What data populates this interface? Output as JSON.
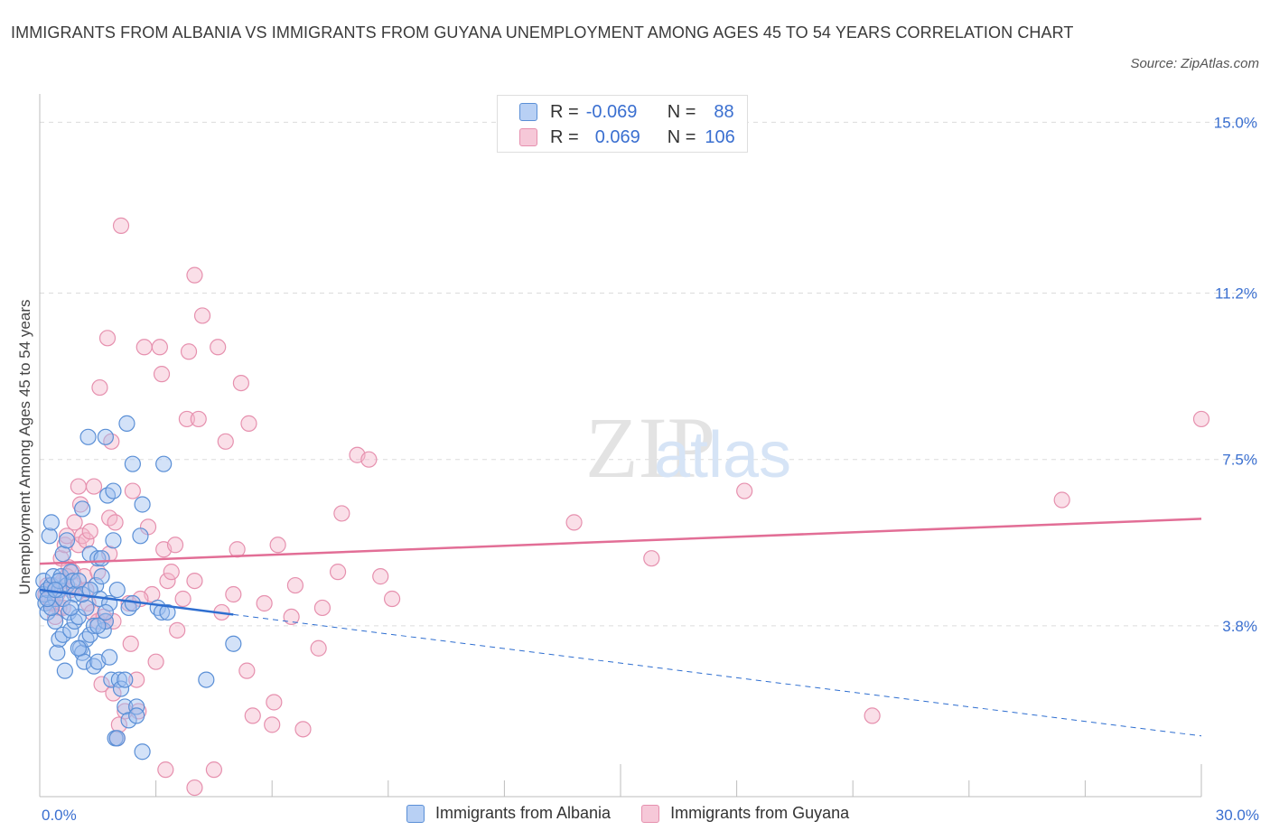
{
  "header": {
    "title": "IMMIGRANTS FROM ALBANIA VS IMMIGRANTS FROM GUYANA UNEMPLOYMENT AMONG AGES 45 TO 54 YEARS CORRELATION CHART",
    "source": "Source: ZipAtlas.com"
  },
  "colors": {
    "albania_fill": "#9dbff0",
    "albania_stroke": "#5a8fd6",
    "albania_line": "#2e6ed0",
    "guyana_fill": "#f3b8cc",
    "guyana_stroke": "#e690ae",
    "guyana_line": "#e26e96",
    "tick_text": "#3a6fd0"
  },
  "legend_top": {
    "r_label": "R =",
    "n_label": "N =",
    "rows": [
      {
        "r": "-0.069",
        "n": "88"
      },
      {
        "r": "0.069",
        "n": "106"
      }
    ]
  },
  "watermark": {
    "zip": "ZIP",
    "atlas": "atlas"
  },
  "chart_data": {
    "type": "scatter",
    "title": "IMMIGRANTS FROM ALBANIA VS IMMIGRANTS FROM GUYANA UNEMPLOYMENT AMONG AGES 45 TO 54 YEARS CORRELATION CHART",
    "xlabel": "",
    "ylabel": "Unemployment Among Ages 45 to 54 years",
    "xlim": [
      0,
      30
    ],
    "ylim": [
      0,
      15.35
    ],
    "x_tick_labels": [
      "0.0%",
      "30.0%"
    ],
    "x_ticks": [
      0,
      30
    ],
    "y_tick_labels": [
      "3.8%",
      "7.5%",
      "11.2%",
      "15.0%"
    ],
    "y_ticks": [
      3.8,
      7.5,
      11.2,
      15.0
    ],
    "grid": "horizontal dashed",
    "legend_position": "bottom",
    "series": [
      {
        "name": "Immigrants from Albania",
        "R": -0.069,
        "N": 88,
        "trend": {
          "x": [
            0,
            5
          ],
          "y": [
            4.6,
            4.05
          ],
          "extended_to": [
            30,
            1.35
          ]
        },
        "points": [
          [
            0.1,
            4.8
          ],
          [
            0.1,
            4.5
          ],
          [
            0.15,
            4.3
          ],
          [
            0.2,
            4.6
          ],
          [
            0.2,
            4.1
          ],
          [
            0.25,
            5.8
          ],
          [
            0.3,
            6.1
          ],
          [
            0.3,
            4.7
          ],
          [
            0.35,
            4.9
          ],
          [
            0.4,
            3.9
          ],
          [
            0.4,
            4.4
          ],
          [
            0.45,
            3.2
          ],
          [
            0.5,
            4.6
          ],
          [
            0.5,
            3.5
          ],
          [
            0.55,
            4.9
          ],
          [
            0.6,
            5.4
          ],
          [
            0.6,
            3.6
          ],
          [
            0.65,
            2.8
          ],
          [
            0.7,
            4.7
          ],
          [
            0.7,
            5.7
          ],
          [
            0.75,
            4.1
          ],
          [
            0.8,
            3.7
          ],
          [
            0.8,
            5.0
          ],
          [
            0.85,
            4.8
          ],
          [
            0.9,
            3.9
          ],
          [
            0.9,
            4.5
          ],
          [
            1.0,
            4.0
          ],
          [
            1.0,
            4.8
          ],
          [
            1.05,
            3.3
          ],
          [
            1.1,
            3.2
          ],
          [
            1.1,
            6.4
          ],
          [
            1.15,
            3.0
          ],
          [
            1.2,
            4.2
          ],
          [
            1.2,
            3.5
          ],
          [
            1.25,
            8.0
          ],
          [
            1.3,
            3.6
          ],
          [
            1.3,
            5.4
          ],
          [
            1.4,
            2.9
          ],
          [
            1.4,
            3.8
          ],
          [
            1.45,
            4.7
          ],
          [
            1.5,
            5.3
          ],
          [
            1.5,
            3.0
          ],
          [
            1.55,
            4.4
          ],
          [
            1.6,
            4.9
          ],
          [
            1.6,
            5.3
          ],
          [
            1.65,
            3.7
          ],
          [
            1.7,
            8.0
          ],
          [
            1.7,
            3.9
          ],
          [
            1.75,
            6.7
          ],
          [
            1.8,
            4.3
          ],
          [
            1.8,
            3.1
          ],
          [
            1.85,
            2.6
          ],
          [
            1.9,
            5.7
          ],
          [
            1.9,
            6.8
          ],
          [
            1.95,
            1.3
          ],
          [
            2.0,
            4.6
          ],
          [
            2.0,
            1.3
          ],
          [
            2.05,
            2.6
          ],
          [
            2.1,
            2.4
          ],
          [
            2.2,
            2.0
          ],
          [
            2.2,
            2.6
          ],
          [
            2.25,
            8.3
          ],
          [
            2.3,
            4.2
          ],
          [
            2.3,
            1.7
          ],
          [
            2.4,
            4.3
          ],
          [
            2.4,
            7.4
          ],
          [
            2.5,
            2.0
          ],
          [
            2.5,
            1.8
          ],
          [
            2.6,
            5.8
          ],
          [
            2.65,
            6.5
          ],
          [
            2.65,
            1.0
          ],
          [
            3.05,
            4.2
          ],
          [
            3.15,
            4.1
          ],
          [
            3.2,
            7.4
          ],
          [
            3.3,
            4.1
          ],
          [
            4.3,
            2.6
          ],
          [
            5.0,
            3.4
          ],
          [
            1.0,
            3.3
          ],
          [
            0.3,
            4.2
          ],
          [
            0.5,
            4.8
          ],
          [
            0.6,
            4.4
          ],
          [
            0.8,
            4.2
          ],
          [
            1.1,
            4.5
          ],
          [
            1.3,
            4.6
          ],
          [
            1.5,
            3.8
          ],
          [
            1.7,
            4.1
          ],
          [
            0.2,
            4.4
          ],
          [
            0.4,
            4.6
          ]
        ]
      },
      {
        "name": "Immigrants from Guyana",
        "R": 0.069,
        "N": 106,
        "trend": {
          "x": [
            0,
            30
          ],
          "y": [
            5.18,
            6.18
          ]
        },
        "points": [
          [
            0.15,
            4.5
          ],
          [
            0.2,
            4.7
          ],
          [
            0.25,
            4.4
          ],
          [
            0.3,
            4.6
          ],
          [
            0.35,
            4.3
          ],
          [
            0.4,
            4.7
          ],
          [
            0.45,
            4.5
          ],
          [
            0.5,
            4.2
          ],
          [
            0.55,
            5.3
          ],
          [
            0.6,
            4.8
          ],
          [
            0.65,
            5.6
          ],
          [
            0.7,
            5.8
          ],
          [
            0.75,
            5.1
          ],
          [
            0.8,
            4.6
          ],
          [
            0.85,
            5.0
          ],
          [
            0.9,
            6.1
          ],
          [
            1.0,
            6.9
          ],
          [
            1.0,
            5.6
          ],
          [
            1.05,
            6.5
          ],
          [
            1.1,
            5.8
          ],
          [
            1.15,
            4.9
          ],
          [
            1.2,
            5.7
          ],
          [
            1.25,
            4.3
          ],
          [
            1.3,
            5.9
          ],
          [
            1.35,
            4.1
          ],
          [
            1.4,
            6.9
          ],
          [
            1.5,
            5.0
          ],
          [
            1.5,
            3.9
          ],
          [
            1.55,
            9.1
          ],
          [
            1.6,
            2.5
          ],
          [
            1.65,
            4.0
          ],
          [
            1.7,
            3.9
          ],
          [
            1.75,
            10.2
          ],
          [
            1.8,
            6.2
          ],
          [
            1.85,
            7.9
          ],
          [
            1.9,
            3.9
          ],
          [
            1.9,
            2.3
          ],
          [
            1.95,
            6.1
          ],
          [
            2.0,
            1.3
          ],
          [
            2.05,
            1.6
          ],
          [
            2.1,
            12.7
          ],
          [
            2.2,
            1.9
          ],
          [
            2.3,
            4.3
          ],
          [
            2.35,
            3.4
          ],
          [
            2.4,
            6.8
          ],
          [
            2.5,
            2.6
          ],
          [
            2.55,
            1.9
          ],
          [
            2.7,
            10.0
          ],
          [
            2.8,
            6.0
          ],
          [
            2.9,
            4.5
          ],
          [
            3.0,
            3.0
          ],
          [
            3.1,
            10.0
          ],
          [
            3.15,
            9.4
          ],
          [
            3.2,
            5.5
          ],
          [
            3.25,
            0.6
          ],
          [
            3.3,
            4.8
          ],
          [
            3.4,
            5.0
          ],
          [
            3.5,
            5.6
          ],
          [
            3.55,
            3.7
          ],
          [
            3.7,
            4.4
          ],
          [
            3.8,
            8.4
          ],
          [
            3.85,
            9.9
          ],
          [
            4.0,
            4.8
          ],
          [
            4.0,
            0.2
          ],
          [
            4.0,
            11.6
          ],
          [
            4.1,
            8.4
          ],
          [
            4.2,
            10.7
          ],
          [
            4.5,
            0.6
          ],
          [
            4.6,
            10.0
          ],
          [
            4.7,
            4.1
          ],
          [
            4.8,
            7.9
          ],
          [
            5.0,
            4.5
          ],
          [
            5.1,
            5.5
          ],
          [
            5.2,
            9.2
          ],
          [
            5.35,
            2.8
          ],
          [
            5.4,
            8.3
          ],
          [
            5.5,
            1.8
          ],
          [
            5.8,
            4.3
          ],
          [
            6.0,
            1.6
          ],
          [
            6.05,
            2.1
          ],
          [
            6.15,
            5.6
          ],
          [
            6.5,
            4.0
          ],
          [
            6.6,
            4.7
          ],
          [
            6.8,
            1.5
          ],
          [
            7.2,
            3.3
          ],
          [
            7.3,
            4.2
          ],
          [
            7.7,
            5.0
          ],
          [
            7.8,
            6.3
          ],
          [
            8.2,
            7.6
          ],
          [
            8.5,
            7.5
          ],
          [
            8.8,
            4.9
          ],
          [
            9.1,
            4.4
          ],
          [
            13.8,
            6.1
          ],
          [
            15.8,
            5.3
          ],
          [
            18.2,
            6.8
          ],
          [
            21.5,
            1.8
          ],
          [
            26.4,
            6.6
          ],
          [
            30.0,
            8.4
          ],
          [
            0.3,
            4.3
          ],
          [
            0.6,
            4.2
          ],
          [
            0.9,
            4.7
          ],
          [
            1.2,
            4.6
          ],
          [
            1.8,
            5.4
          ],
          [
            2.6,
            4.4
          ],
          [
            0.4,
            4.0
          ],
          [
            0.7,
            4.9
          ]
        ]
      }
    ]
  }
}
